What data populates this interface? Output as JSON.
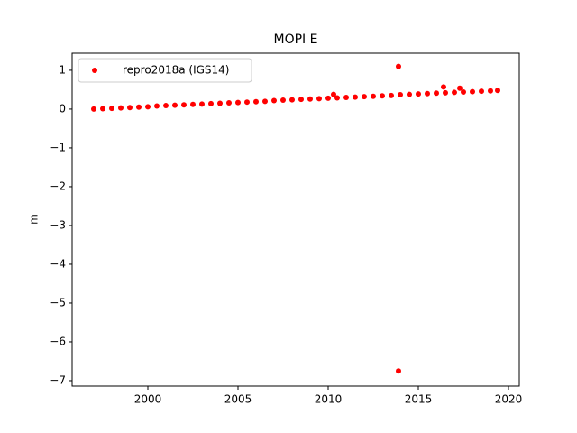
{
  "chart_data": {
    "type": "scatter",
    "title": "MOPI E",
    "y_label": "m",
    "series": [
      {
        "name": "repro2018a (IGS14)",
        "color": "#ff0000",
        "x": [
          1997.0,
          1997.5,
          1998.0,
          1998.5,
          1999.0,
          1999.5,
          2000.0,
          2000.5,
          2001.0,
          2001.5,
          2002.0,
          2002.5,
          2003.0,
          2003.5,
          2004.0,
          2004.5,
          2005.0,
          2005.5,
          2006.0,
          2006.5,
          2007.0,
          2007.5,
          2008.0,
          2008.5,
          2009.0,
          2009.5,
          2010.0,
          2010.5,
          2011.0,
          2011.5,
          2012.0,
          2012.5,
          2013.0,
          2013.5,
          2014.0,
          2014.5,
          2015.0,
          2015.5,
          2016.0,
          2016.5,
          2017.0,
          2017.5,
          2018.0,
          2018.5,
          2019.0,
          2010.3,
          2013.9,
          2013.9,
          2016.4,
          2017.3,
          2019.4
        ],
        "values": [
          0.0,
          0.01,
          0.02,
          0.03,
          0.04,
          0.05,
          0.06,
          0.08,
          0.09,
          0.1,
          0.11,
          0.12,
          0.13,
          0.14,
          0.15,
          0.16,
          0.17,
          0.18,
          0.19,
          0.2,
          0.22,
          0.23,
          0.24,
          0.25,
          0.26,
          0.27,
          0.28,
          0.29,
          0.3,
          0.31,
          0.32,
          0.33,
          0.34,
          0.35,
          0.37,
          0.38,
          0.39,
          0.4,
          0.41,
          0.42,
          0.43,
          0.44,
          0.45,
          0.46,
          0.47,
          0.38,
          1.1,
          -6.75,
          0.57,
          0.54,
          0.48
        ]
      }
    ],
    "xlim": [
      1995.8,
      2020.6
    ],
    "ylim": [
      -7.14,
      1.44
    ],
    "xticks": [
      2000,
      2005,
      2010,
      2015,
      2020
    ],
    "yticks": [
      {
        "value": -7,
        "label": "−7"
      },
      {
        "value": -6,
        "label": "−6"
      },
      {
        "value": -5,
        "label": "−5"
      },
      {
        "value": -4,
        "label": "−4"
      },
      {
        "value": -3,
        "label": "−3"
      },
      {
        "value": -2,
        "label": "−2"
      },
      {
        "value": -1,
        "label": "−1"
      },
      0,
      1
    ],
    "legend": "upper left"
  }
}
